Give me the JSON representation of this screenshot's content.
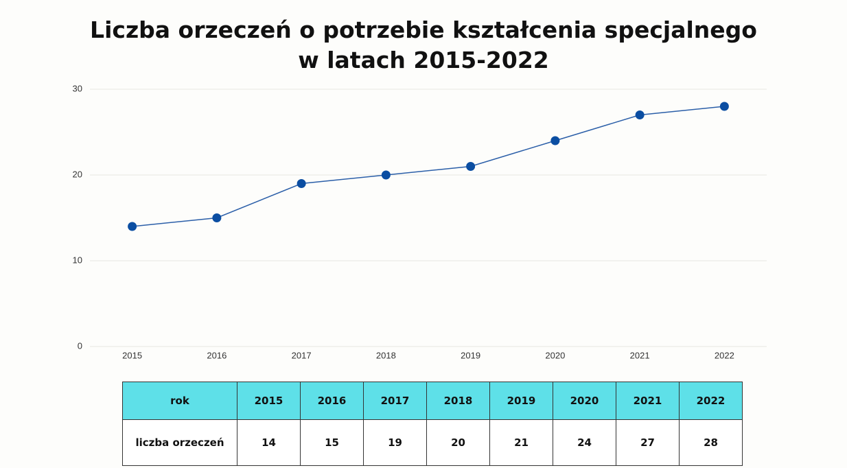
{
  "chart_data": {
    "type": "line",
    "title": "Liczba orzeczeń o potrzebie kształcenia specjalnego w latach 2015-2022",
    "categories": [
      "2015",
      "2016",
      "2017",
      "2018",
      "2019",
      "2020",
      "2021",
      "2022"
    ],
    "series": [
      {
        "name": "liczba orzeczeń",
        "color": "#0b4ea2",
        "values": [
          14,
          15,
          19,
          20,
          21,
          24,
          27,
          28
        ]
      }
    ],
    "ylim": [
      0,
      30
    ],
    "yticks": [
      0,
      10,
      20,
      30
    ],
    "grid": true
  },
  "table": {
    "header": [
      "rok",
      "2015",
      "2016",
      "2017",
      "2018",
      "2019",
      "2020",
      "2021",
      "2022"
    ],
    "rows": [
      [
        "liczba orzeczeń",
        "14",
        "15",
        "19",
        "20",
        "21",
        "24",
        "27",
        "28"
      ]
    ]
  }
}
